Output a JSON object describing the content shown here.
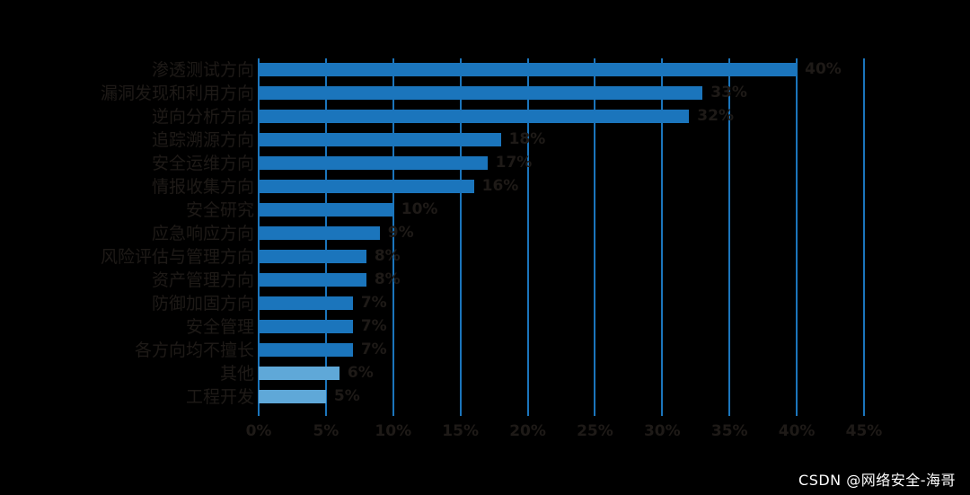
{
  "watermark": "CSDN @网络安全-海哥",
  "colors": {
    "background": "#000000",
    "bar": "#1b75bc",
    "bar_light": "#5fa8d8",
    "grid": "#1b75bc",
    "label_text": "#1e1a17",
    "watermark_text": "#ffffff"
  },
  "chart_data": {
    "type": "bar",
    "orientation": "horizontal",
    "title": "",
    "categories": [
      "渗透测试方向",
      "漏洞发现和利用方向",
      "逆向分析方向",
      "追踪溯源方向",
      "安全运维方向",
      "情报收集方向",
      "安全研究",
      "应急响应方向",
      "风险评估与管理方向",
      "资产管理方向",
      "防御加固方向",
      "安全管理",
      "各方向均不擅长",
      "其他",
      "工程开发"
    ],
    "values": [
      40,
      33,
      32,
      18,
      17,
      16,
      10,
      9,
      8,
      8,
      7,
      7,
      7,
      6,
      5
    ],
    "value_labels": [
      "40%",
      "33%",
      "32%",
      "18%",
      "17%",
      "16%",
      "10%",
      "9%",
      "8%",
      "8%",
      "7%",
      "7%",
      "7%",
      "6%",
      "5%"
    ],
    "light_bar_indices": [
      13,
      14
    ],
    "x_ticks": [
      {
        "value": 0,
        "label": "0%"
      },
      {
        "value": 5,
        "label": "5%"
      },
      {
        "value": 10,
        "label": "10%"
      },
      {
        "value": 15,
        "label": "15%"
      },
      {
        "value": 20,
        "label": "20%"
      },
      {
        "value": 25,
        "label": "25%"
      },
      {
        "value": 30,
        "label": "30%"
      },
      {
        "value": 35,
        "label": "35%"
      },
      {
        "value": 40,
        "label": "40%"
      },
      {
        "value": 45,
        "label": "45%"
      }
    ],
    "xlim": [
      0,
      45
    ],
    "grid": true,
    "legend": false
  }
}
